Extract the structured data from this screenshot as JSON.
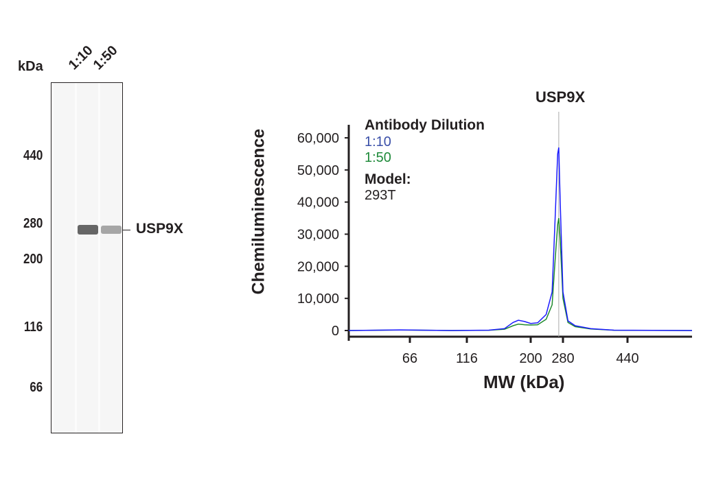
{
  "blot": {
    "unit_label": "kDa",
    "lane_labels": [
      "1:10",
      "1:50"
    ],
    "markers": [
      "440",
      "280",
      "200",
      "116",
      "66"
    ],
    "target_label": "USP9X"
  },
  "chart_data": {
    "type": "line",
    "title": "USP9X",
    "xlabel": "MW (kDa)",
    "ylabel": "Chemiluminescence",
    "x_ticks": [
      66,
      116,
      200,
      280,
      440
    ],
    "x_tick_labels": [
      "66",
      "116",
      "200",
      "280",
      "440"
    ],
    "y_ticks": [
      0,
      10000,
      20000,
      30000,
      40000,
      50000,
      60000
    ],
    "y_tick_labels": [
      "0",
      "10,000",
      "20,000",
      "30,000",
      "40,000",
      "50,000",
      "60,000"
    ],
    "xlim": [
      36,
      690
    ],
    "ylim": [
      0,
      60000
    ],
    "x_scale": "nonlinear (MW)",
    "grid": false,
    "marker_line_at": 268,
    "legend": {
      "title": "Antibody Dilution",
      "model_label": "Model:",
      "model_value": "293T",
      "position": "top-left"
    },
    "series": [
      {
        "name": "1:10",
        "color": "#1a1aff",
        "label_color": "#3a4fa8",
        "x": [
          36,
          60,
          100,
          140,
          160,
          172,
          180,
          190,
          200,
          215,
          235,
          250,
          258,
          265,
          268,
          272,
          280,
          290,
          305,
          340,
          400,
          690
        ],
        "y": [
          0,
          200,
          0,
          100,
          600,
          2500,
          3200,
          2800,
          2200,
          2400,
          5000,
          12000,
          35000,
          55000,
          57000,
          40000,
          12000,
          3000,
          1500,
          600,
          100,
          0
        ]
      },
      {
        "name": "1:50",
        "color": "#1f8a2e",
        "label_color": "#1f8a3a",
        "x": [
          36,
          60,
          100,
          140,
          160,
          172,
          180,
          190,
          200,
          215,
          235,
          250,
          258,
          265,
          268,
          272,
          280,
          290,
          305,
          340,
          400,
          690
        ],
        "y": [
          0,
          150,
          0,
          80,
          400,
          1500,
          2000,
          1800,
          1700,
          1800,
          3500,
          8000,
          22000,
          33000,
          35000,
          28000,
          10000,
          2500,
          1200,
          500,
          80,
          0
        ]
      }
    ]
  }
}
